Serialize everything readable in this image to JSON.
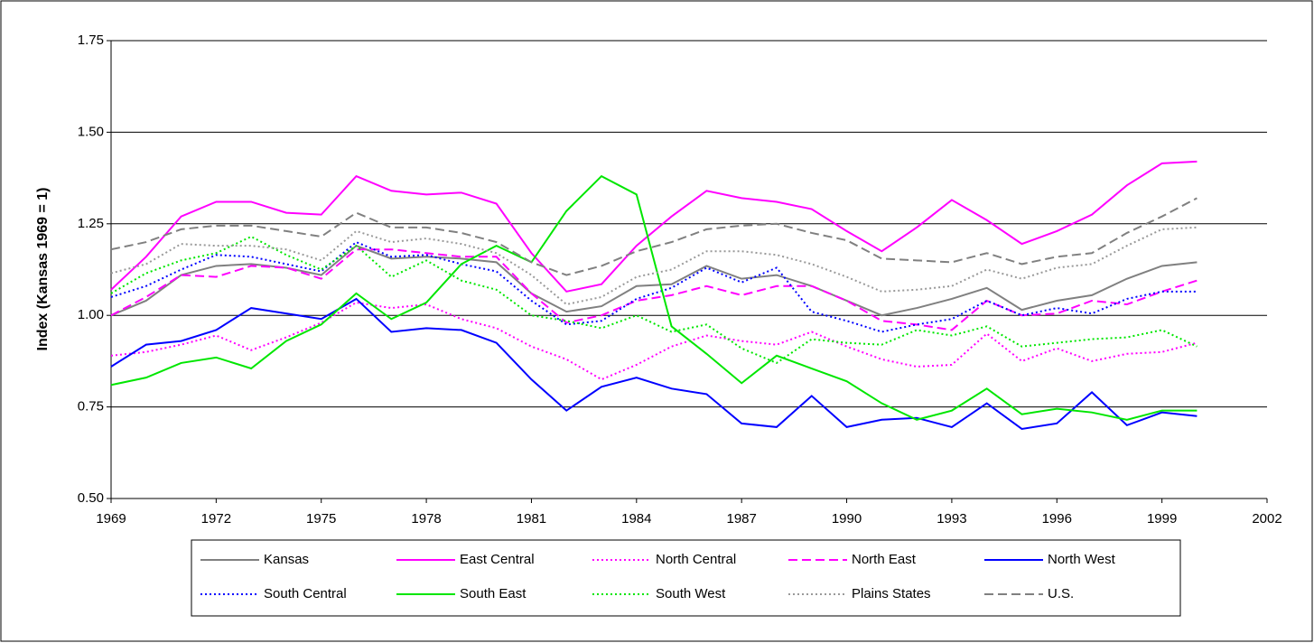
{
  "chart_data": {
    "type": "line",
    "ylabel": "Index (Kansas 1969 = 1)",
    "x": [
      1969,
      1970,
      1971,
      1972,
      1973,
      1974,
      1975,
      1976,
      1977,
      1978,
      1979,
      1980,
      1981,
      1982,
      1983,
      1984,
      1985,
      1986,
      1987,
      1988,
      1989,
      1990,
      1991,
      1992,
      1993,
      1994,
      1995,
      1996,
      1997,
      1998,
      1999,
      2000
    ],
    "xlim": [
      1969,
      2002
    ],
    "xticks": [
      1969,
      1972,
      1975,
      1978,
      1981,
      1984,
      1987,
      1990,
      1993,
      1996,
      1999,
      2002
    ],
    "ylim": [
      0.5,
      1.75
    ],
    "yticks": [
      {
        "value": 0.5,
        "label": "0.50"
      },
      {
        "value": 0.75,
        "label": "0.75"
      },
      {
        "value": 1.0,
        "label": "1.00"
      },
      {
        "value": 1.25,
        "label": "1.25"
      },
      {
        "value": 1.5,
        "label": "1.50"
      },
      {
        "value": 1.75,
        "label": "1.75"
      }
    ],
    "grid": true,
    "legend": "bottom",
    "series": [
      {
        "name": "Kansas",
        "color": "#808080",
        "style": "solid",
        "values": [
          1.0,
          1.04,
          1.11,
          1.135,
          1.14,
          1.13,
          1.11,
          1.19,
          1.155,
          1.16,
          1.155,
          1.145,
          1.06,
          1.01,
          1.025,
          1.08,
          1.085,
          1.135,
          1.1,
          1.11,
          1.08,
          1.04,
          1.0,
          1.02,
          1.045,
          1.075,
          1.015,
          1.04,
          1.055,
          1.1,
          1.135,
          1.145
        ]
      },
      {
        "name": "East Central",
        "color": "#ff00ff",
        "style": "solid",
        "values": [
          1.07,
          1.16,
          1.27,
          1.31,
          1.31,
          1.28,
          1.275,
          1.38,
          1.34,
          1.33,
          1.335,
          1.305,
          1.17,
          1.065,
          1.085,
          1.19,
          1.27,
          1.34,
          1.32,
          1.31,
          1.29,
          1.23,
          1.175,
          1.24,
          1.315,
          1.26,
          1.195,
          1.23,
          1.275,
          1.355,
          1.415,
          1.42
        ]
      },
      {
        "name": "North Central",
        "color": "#ff00ff",
        "style": "dotted",
        "values": [
          0.89,
          0.9,
          0.92,
          0.945,
          0.905,
          0.94,
          0.98,
          1.035,
          1.02,
          1.03,
          0.99,
          0.965,
          0.915,
          0.88,
          0.825,
          0.865,
          0.915,
          0.945,
          0.93,
          0.92,
          0.955,
          0.915,
          0.88,
          0.86,
          0.865,
          0.95,
          0.875,
          0.91,
          0.875,
          0.895,
          0.9,
          0.925
        ]
      },
      {
        "name": "North East",
        "color": "#ff00ff",
        "style": "dashed",
        "values": [
          1.0,
          1.05,
          1.11,
          1.105,
          1.135,
          1.13,
          1.1,
          1.18,
          1.18,
          1.17,
          1.16,
          1.16,
          1.06,
          0.98,
          1.0,
          1.04,
          1.055,
          1.08,
          1.055,
          1.08,
          1.08,
          1.04,
          0.985,
          0.975,
          0.96,
          1.04,
          1.0,
          1.005,
          1.04,
          1.03,
          1.065,
          1.095
        ]
      },
      {
        "name": "North West",
        "color": "#0000ff",
        "style": "solid",
        "values": [
          0.86,
          0.92,
          0.93,
          0.96,
          1.02,
          1.005,
          0.99,
          1.045,
          0.955,
          0.965,
          0.96,
          0.925,
          0.825,
          0.74,
          0.805,
          0.83,
          0.8,
          0.785,
          0.705,
          0.695,
          0.78,
          0.695,
          0.715,
          0.72,
          0.695,
          0.76,
          0.69,
          0.705,
          0.79,
          0.7,
          0.735,
          0.725
        ]
      },
      {
        "name": "South Central",
        "color": "#0000ff",
        "style": "dotted",
        "values": [
          1.05,
          1.08,
          1.125,
          1.165,
          1.16,
          1.14,
          1.12,
          1.2,
          1.16,
          1.165,
          1.14,
          1.12,
          1.04,
          0.975,
          0.985,
          1.045,
          1.075,
          1.13,
          1.09,
          1.13,
          1.01,
          0.985,
          0.955,
          0.975,
          0.99,
          1.04,
          1.0,
          1.02,
          1.005,
          1.045,
          1.065,
          1.065
        ]
      },
      {
        "name": "South East",
        "color": "#00e600",
        "style": "solid",
        "values": [
          0.81,
          0.83,
          0.87,
          0.885,
          0.855,
          0.93,
          0.975,
          1.06,
          0.99,
          1.035,
          1.14,
          1.19,
          1.145,
          1.285,
          1.38,
          1.33,
          0.97,
          0.895,
          0.815,
          0.89,
          0.855,
          0.82,
          0.76,
          0.715,
          0.74,
          0.8,
          0.73,
          0.745,
          0.735,
          0.715,
          0.74,
          0.74
        ]
      },
      {
        "name": "South West",
        "color": "#00e600",
        "style": "dotted",
        "values": [
          1.06,
          1.115,
          1.15,
          1.17,
          1.215,
          1.165,
          1.125,
          1.19,
          1.105,
          1.15,
          1.095,
          1.07,
          1.0,
          0.985,
          0.965,
          1.0,
          0.955,
          0.975,
          0.91,
          0.87,
          0.935,
          0.925,
          0.92,
          0.96,
          0.945,
          0.97,
          0.915,
          0.925,
          0.935,
          0.94,
          0.96,
          0.915
        ]
      },
      {
        "name": "Plains States",
        "color": "#999999",
        "style": "dotted",
        "values": [
          1.115,
          1.14,
          1.195,
          1.19,
          1.19,
          1.18,
          1.15,
          1.23,
          1.2,
          1.21,
          1.195,
          1.17,
          1.11,
          1.03,
          1.05,
          1.105,
          1.125,
          1.175,
          1.175,
          1.165,
          1.14,
          1.105,
          1.065,
          1.07,
          1.08,
          1.125,
          1.1,
          1.13,
          1.14,
          1.19,
          1.235,
          1.24
        ]
      },
      {
        "name": "U.S.",
        "color": "#808080",
        "style": "dashed",
        "values": [
          1.18,
          1.2,
          1.235,
          1.245,
          1.245,
          1.23,
          1.215,
          1.28,
          1.24,
          1.24,
          1.225,
          1.2,
          1.145,
          1.11,
          1.135,
          1.175,
          1.2,
          1.235,
          1.245,
          1.25,
          1.225,
          1.205,
          1.155,
          1.15,
          1.145,
          1.17,
          1.14,
          1.16,
          1.17,
          1.225,
          1.27,
          1.32
        ]
      }
    ]
  }
}
